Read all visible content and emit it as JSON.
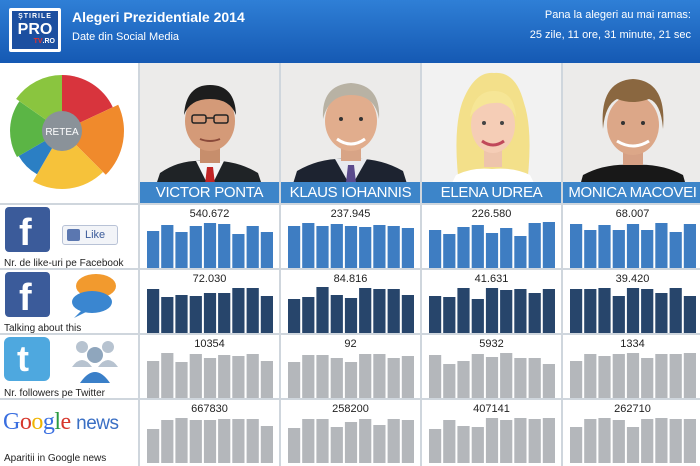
{
  "header": {
    "logo_top": "ŞTIRILE",
    "logo_mid": "PRO",
    "logo_tv": "TV",
    "logo_ro": ".RO",
    "title": "Alegeri Prezidentiale 2014",
    "subtitle": "Date din Social Media",
    "countdown_label": "Pana la alegeri au mai ramas:",
    "countdown_value": "25 zile, 11 ore, 31 minute, 21 sec"
  },
  "network_chart": {
    "label": "RETEA",
    "colors": [
      "#d8343d",
      "#f08a2c",
      "#f6c23a",
      "#2b7fc4",
      "#5bb545",
      "#8ac53f"
    ]
  },
  "candidates": [
    "VICTOR PONTA",
    "KLAUS IOHANNIS",
    "ELENA UDREA",
    "MONICA MACOVEI"
  ],
  "metrics": [
    {
      "label": "Nr. de like-uri pe Facebook",
      "like_label": "Like",
      "icon": "facebook-icon"
    },
    {
      "label": "Talking about this",
      "icon": "facebook-icon"
    },
    {
      "label": "Nr. followers pe Twitter",
      "icon": "twitter-icon"
    },
    {
      "label": "Aparitii in Google news",
      "icon": "google-news-logo",
      "logo_letters": [
        "G",
        "o",
        "o",
        "g",
        "l",
        "e"
      ],
      "logo_news": "news"
    }
  ],
  "colors": {
    "facebook_likes": "#3e7dc2",
    "talking_about": "#27456b",
    "twitter": "#b4b7bb",
    "google_news": "#b4b7bb",
    "name_bar": "#3d85c9"
  },
  "chart_data": {
    "type": "table",
    "title": "Alegeri Prezidentiale 2014 - Date din Social Media",
    "columns": [
      "VICTOR PONTA",
      "KLAUS IOHANNIS",
      "ELENA UDREA",
      "MONICA MACOVEI"
    ],
    "rows": [
      {
        "metric": "Nr. de like-uri pe Facebook",
        "values": [
          "540.672",
          "237.945",
          "226.580",
          "68.007"
        ],
        "sparklines": [
          [
            0.78,
            0.92,
            0.74,
            0.9,
            0.98,
            0.96,
            0.7,
            0.9,
            0.76
          ],
          [
            0.9,
            0.98,
            0.9,
            0.94,
            0.9,
            0.88,
            0.92,
            0.9,
            0.86
          ],
          [
            0.8,
            0.7,
            0.88,
            0.92,
            0.72,
            0.84,
            0.64,
            0.98,
            1.0
          ],
          [
            0.96,
            0.8,
            0.92,
            0.8,
            0.96,
            0.8,
            0.98,
            0.76,
            0.94
          ]
        ]
      },
      {
        "metric": "Talking about this",
        "values": [
          "72.030",
          "84.816",
          "41.631",
          "39.420"
        ],
        "sparklines": [
          [
            0.96,
            0.76,
            0.8,
            0.78,
            0.84,
            0.84,
            0.98,
            0.98,
            0.78
          ],
          [
            0.7,
            0.74,
            1.0,
            0.8,
            0.72,
            0.98,
            0.94,
            0.96,
            0.8
          ],
          [
            0.78,
            0.74,
            0.98,
            0.7,
            0.98,
            0.92,
            0.96,
            0.86,
            0.96
          ],
          [
            0.96,
            0.96,
            0.98,
            0.78,
            0.98,
            0.96,
            0.84,
            0.98,
            0.78
          ]
        ]
      },
      {
        "metric": "Nr. followers pe Twitter",
        "values": [
          "10354",
          "92",
          "5932",
          "1334"
        ],
        "sparklines": [
          [
            0.78,
            0.98,
            0.74,
            0.94,
            0.86,
            0.92,
            0.9,
            0.94,
            0.78
          ],
          [
            0.74,
            0.92,
            0.92,
            0.84,
            0.74,
            0.94,
            0.96,
            0.84,
            0.9
          ],
          [
            0.92,
            0.7,
            0.78,
            0.96,
            0.88,
            0.98,
            0.84,
            0.86,
            0.7
          ],
          [
            0.78,
            0.94,
            0.9,
            0.96,
            0.98,
            0.86,
            0.96,
            0.96,
            0.98
          ]
        ]
      },
      {
        "metric": "Aparitii in Google news",
        "values": [
          "667830",
          "258200",
          "407141",
          "262710"
        ],
        "sparklines": [
          [
            0.7,
            0.92,
            0.98,
            0.92,
            0.92,
            0.96,
            0.96,
            0.96,
            0.78
          ],
          [
            0.72,
            0.96,
            0.96,
            0.76,
            0.88,
            0.96,
            0.8,
            0.96,
            0.92
          ],
          [
            0.7,
            0.92,
            0.78,
            0.76,
            0.98,
            0.92,
            0.98,
            0.96,
            0.98
          ],
          [
            0.76,
            0.96,
            0.98,
            0.92,
            0.76,
            0.96,
            0.98,
            0.94,
            0.96
          ]
        ]
      }
    ]
  }
}
